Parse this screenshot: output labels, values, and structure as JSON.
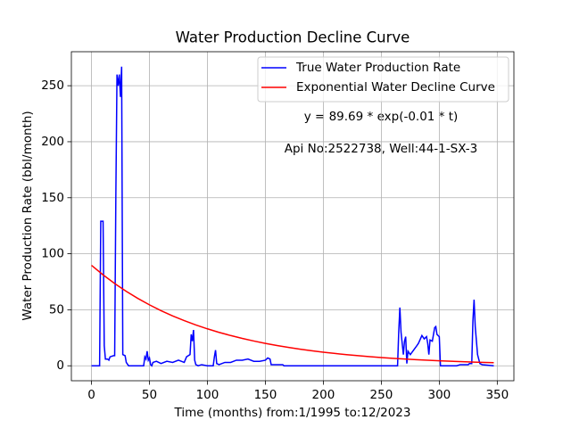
{
  "chart_data": {
    "type": "line",
    "title": "Water Production Decline Curve",
    "xlabel": "Time (months) from:1/1995 to:12/2023",
    "ylabel": "Water Production Rate (bbl/month)",
    "annotations": [
      "y = 89.69 * exp(-0.01 * t)",
      "Api No:2522738, Well:44-1-SX-3"
    ],
    "xlim": [
      -17.35,
      364.35
    ],
    "ylim": [
      -13.35,
      280.35
    ],
    "xticks": [
      0,
      50,
      100,
      150,
      200,
      250,
      300,
      350
    ],
    "yticks": [
      0,
      50,
      100,
      150,
      200,
      250
    ],
    "grid": true,
    "legend": "upper right",
    "series": [
      {
        "name": "True Water Production Rate",
        "color": "#0000ff",
        "x": [
          0,
          7,
          8,
          10,
          11,
          12,
          14,
          15,
          16,
          19,
          20,
          21,
          22,
          23,
          24,
          25,
          26,
          27,
          29,
          30,
          32,
          45,
          46,
          47,
          48,
          49,
          50,
          51,
          52,
          53,
          56,
          60,
          65,
          70,
          75,
          80,
          82,
          85,
          86,
          87,
          88,
          89,
          90,
          92,
          95,
          100,
          105,
          106,
          107,
          108,
          110,
          115,
          120,
          125,
          130,
          135,
          140,
          145,
          150,
          152,
          154,
          155,
          165,
          166,
          264,
          265,
          266,
          267,
          268,
          269,
          270,
          271,
          272,
          273,
          275,
          280,
          282,
          285,
          287,
          289,
          290,
          291,
          292,
          294,
          296,
          297,
          298,
          300,
          301,
          315,
          318,
          325,
          326,
          328,
          329,
          330,
          331,
          333,
          335,
          337,
          347
        ],
        "values": [
          0,
          0,
          129,
          129,
          18,
          6,
          6,
          5,
          8,
          9,
          9,
          150,
          260,
          250,
          260,
          240,
          267,
          10,
          9,
          3,
          0,
          0,
          8,
          6,
          13,
          5,
          7,
          1,
          0,
          3,
          4,
          2,
          4,
          3,
          5,
          3,
          8,
          10,
          28,
          22,
          32,
          5,
          1,
          0,
          1,
          0,
          0,
          8,
          14,
          2,
          1,
          3,
          3,
          5,
          5,
          6,
          4,
          4,
          5,
          7,
          6,
          1,
          1,
          0,
          0,
          30,
          52,
          30,
          20,
          10,
          22,
          26,
          2,
          13,
          10,
          17,
          20,
          27,
          24,
          26,
          20,
          10,
          23,
          22,
          34,
          35,
          28,
          26,
          0,
          0,
          1,
          1,
          2,
          2,
          40,
          59,
          35,
          10,
          2,
          1,
          0
        ]
      },
      {
        "name": "Exponential Water Decline Curve",
        "color": "#ff0000",
        "x": [
          0,
          10,
          20,
          30,
          40,
          50,
          60,
          70,
          80,
          90,
          100,
          110,
          120,
          130,
          140,
          150,
          160,
          170,
          180,
          190,
          200,
          210,
          220,
          230,
          240,
          250,
          260,
          270,
          280,
          290,
          300,
          310,
          320,
          330,
          340,
          347
        ],
        "values": [
          89.69,
          81.16,
          73.43,
          66.44,
          60.12,
          54.4,
          49.22,
          44.54,
          40.3,
          36.46,
          32.99,
          29.85,
          27.01,
          24.44,
          22.12,
          20.01,
          18.11,
          16.38,
          14.83,
          13.41,
          12.14,
          10.98,
          9.94,
          8.99,
          8.14,
          7.36,
          6.66,
          6.03,
          5.45,
          4.93,
          4.47,
          4.04,
          3.66,
          3.31,
          2.99,
          2.79
        ]
      }
    ]
  }
}
